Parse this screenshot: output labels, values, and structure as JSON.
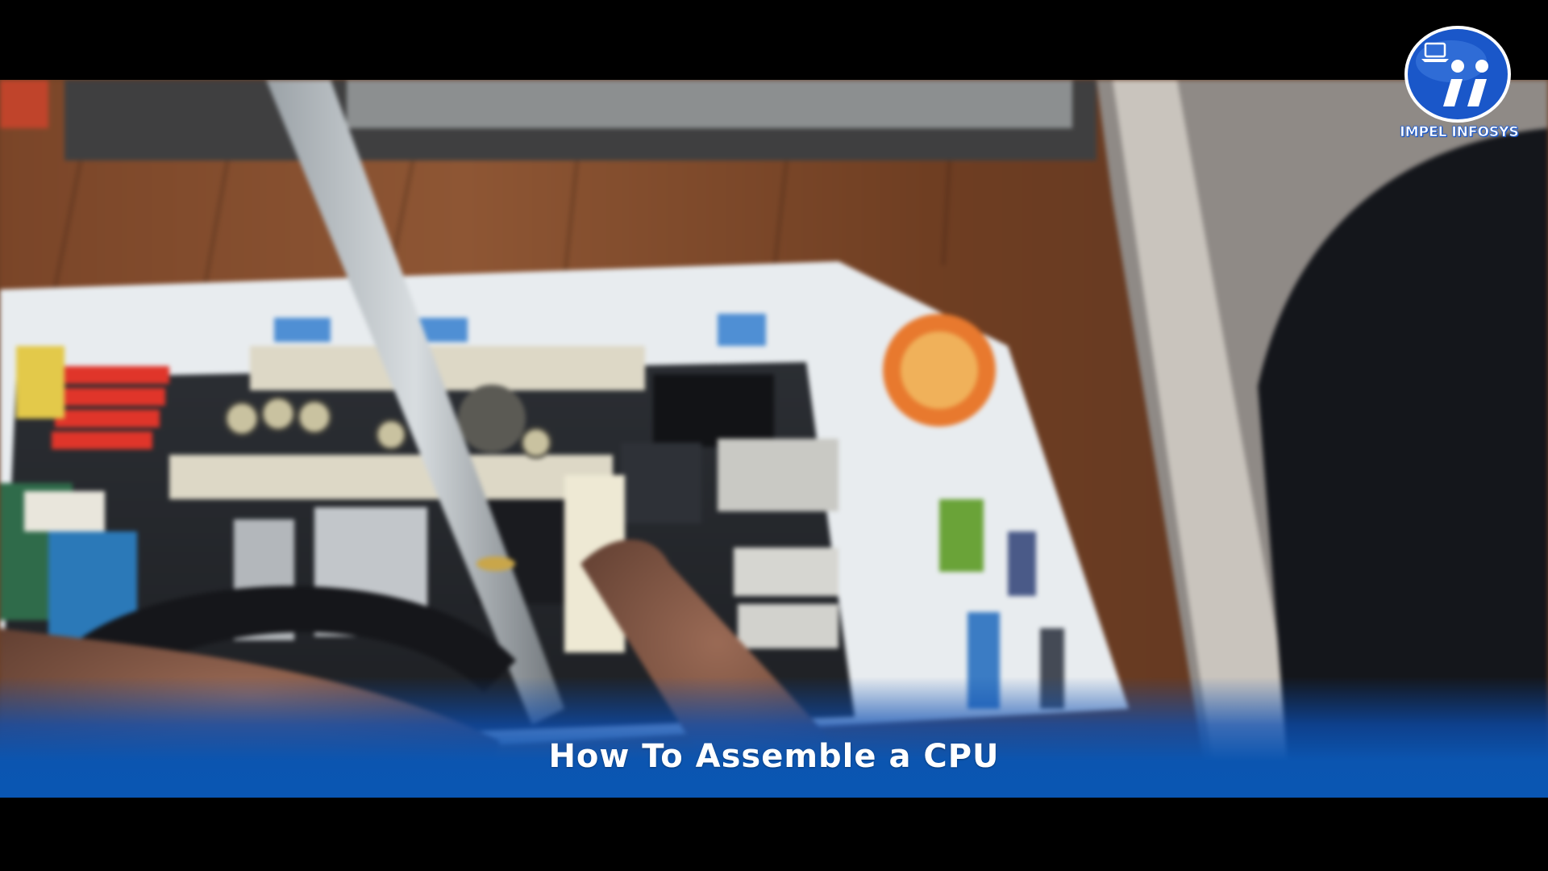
{
  "video": {
    "caption": "How To Assemble a CPU",
    "logo": {
      "text": "IMPEL INFOSYS",
      "icon": "laptop-ii-logo-icon",
      "color": "#1a57c9"
    },
    "band_color": "#0a56b3"
  }
}
